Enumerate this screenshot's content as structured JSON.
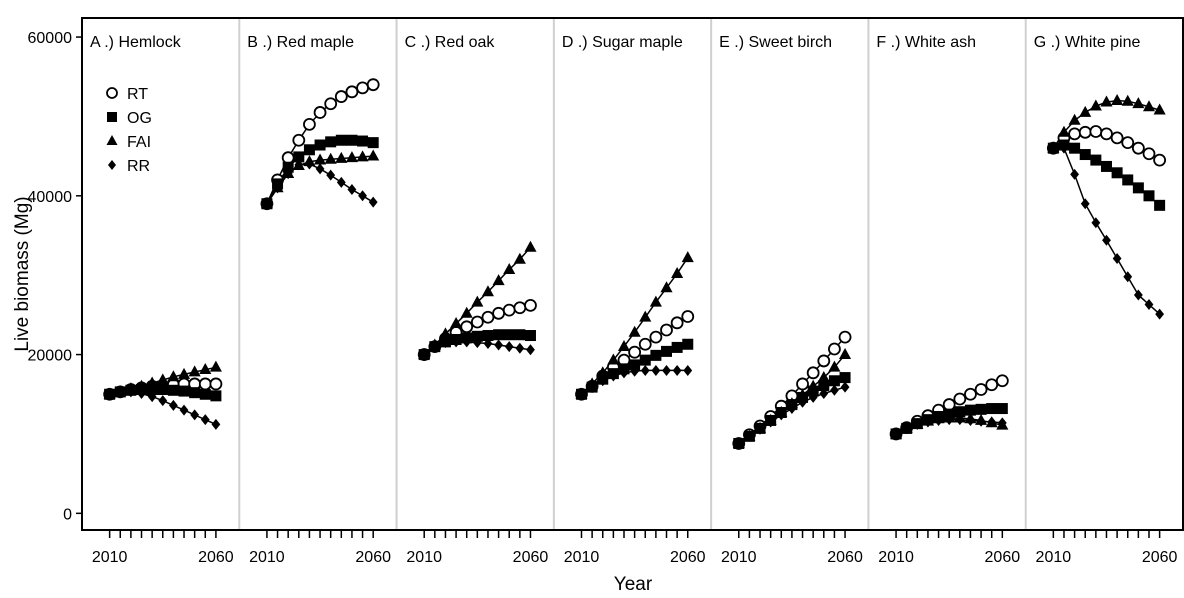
{
  "chart_data": {
    "type": "line",
    "ylabel": "Live biomass (Mg)",
    "xlabel": "Year",
    "x": [
      2010,
      2015,
      2020,
      2025,
      2030,
      2035,
      2040,
      2045,
      2050,
      2055,
      2060
    ],
    "xlim": [
      1997,
      2071
    ],
    "xticks": [
      2010,
      2060
    ],
    "xminorticks": [
      2015,
      2020,
      2025,
      2030,
      2035,
      2040,
      2045,
      2050,
      2055
    ],
    "ylim": [
      -2100,
      62400
    ],
    "yticks": [
      0,
      20000,
      40000,
      60000
    ],
    "series": [
      {
        "name": "RT",
        "color": "#000000",
        "marker": "circle-open"
      },
      {
        "name": "OG",
        "color": "#000000",
        "marker": "square"
      },
      {
        "name": "FAI",
        "color": "#000000",
        "marker": "triangle"
      },
      {
        "name": "RR",
        "color": "#000000",
        "marker": "diamond"
      }
    ],
    "panels": [
      {
        "title": "A .) Hemlock",
        "values": [
          [
            15000,
            15300,
            15600,
            15800,
            16000,
            16100,
            16200,
            16300,
            16300,
            16300,
            16300
          ],
          [
            15000,
            15300,
            15500,
            15600,
            15600,
            15600,
            15500,
            15400,
            15200,
            15000,
            14800
          ],
          [
            15000,
            15300,
            15700,
            16000,
            16400,
            16800,
            17200,
            17500,
            17800,
            18100,
            18400
          ],
          [
            15000,
            15300,
            15300,
            15100,
            14700,
            14200,
            13600,
            13000,
            12400,
            11800,
            11200
          ]
        ]
      },
      {
        "title": "B .) Red maple",
        "values": [
          [
            39000,
            42000,
            44800,
            47000,
            49000,
            50500,
            51600,
            52500,
            53100,
            53600,
            54000
          ],
          [
            39000,
            41500,
            43600,
            44900,
            45800,
            46400,
            46800,
            47000,
            47000,
            46900,
            46700
          ],
          [
            39000,
            41000,
            42800,
            43800,
            44300,
            44500,
            44600,
            44700,
            44800,
            44900,
            45000
          ],
          [
            39000,
            41000,
            42800,
            43900,
            44000,
            43400,
            42600,
            41700,
            40800,
            40000,
            39200
          ]
        ]
      },
      {
        "title": "C .) Red oak",
        "values": [
          [
            20000,
            21000,
            22000,
            22800,
            23500,
            24100,
            24700,
            25200,
            25600,
            25900,
            26200
          ],
          [
            20000,
            21000,
            21600,
            21900,
            22100,
            22300,
            22400,
            22500,
            22500,
            22500,
            22400
          ],
          [
            20000,
            21200,
            22600,
            23900,
            25200,
            26600,
            27900,
            29300,
            30700,
            32000,
            33500
          ],
          [
            20000,
            21000,
            21500,
            21600,
            21600,
            21500,
            21400,
            21200,
            21000,
            20800,
            20600
          ]
        ]
      },
      {
        "title": "D .) Sugar maple",
        "values": [
          [
            15000,
            16000,
            17300,
            18400,
            19300,
            20300,
            21300,
            22200,
            23100,
            24000,
            24800
          ],
          [
            15000,
            15900,
            16900,
            17600,
            18200,
            18700,
            19300,
            19900,
            20400,
            20900,
            21300
          ],
          [
            15000,
            16300,
            17700,
            19300,
            21000,
            22800,
            24700,
            26600,
            28400,
            30200,
            32200
          ],
          [
            15000,
            15900,
            16700,
            17300,
            17700,
            17900,
            18000,
            18000,
            18000,
            18000,
            18000
          ]
        ]
      },
      {
        "title": "E .) Sweet birch",
        "values": [
          [
            8800,
            9900,
            11000,
            12200,
            13500,
            14800,
            16300,
            17700,
            19200,
            20700,
            22200
          ],
          [
            8800,
            9700,
            10700,
            11700,
            12700,
            13700,
            14600,
            15400,
            16100,
            16700,
            17100
          ],
          [
            8800,
            9700,
            10700,
            11700,
            12700,
            13800,
            14900,
            16000,
            17100,
            18400,
            20000
          ],
          [
            8800,
            9700,
            10600,
            11500,
            12400,
            13200,
            14000,
            14600,
            15100,
            15500,
            15900
          ]
        ]
      },
      {
        "title": "F .) White ash",
        "values": [
          [
            10000,
            10800,
            11600,
            12300,
            13000,
            13700,
            14400,
            15000,
            15600,
            16200,
            16700
          ],
          [
            10000,
            10700,
            11300,
            11800,
            12200,
            12500,
            12800,
            13000,
            13100,
            13200,
            13200
          ],
          [
            10000,
            10700,
            11200,
            11600,
            11900,
            12000,
            12000,
            11900,
            11700,
            11400,
            11100
          ],
          [
            10000,
            10700,
            11200,
            11500,
            11700,
            11800,
            11800,
            11700,
            11600,
            11500,
            11400
          ]
        ]
      },
      {
        "title": "G .) White pine",
        "values": [
          [
            46000,
            47300,
            47800,
            48000,
            48100,
            47800,
            47300,
            46700,
            46000,
            45300,
            44500
          ],
          [
            46000,
            46400,
            46000,
            45200,
            44500,
            43700,
            42900,
            42000,
            41000,
            40000,
            38800
          ],
          [
            46000,
            48000,
            49500,
            50500,
            51300,
            51800,
            52000,
            51900,
            51600,
            51200,
            50800
          ],
          [
            46000,
            46000,
            42700,
            39000,
            36600,
            34400,
            32100,
            29800,
            27500,
            26300,
            25100
          ]
        ]
      }
    ]
  }
}
